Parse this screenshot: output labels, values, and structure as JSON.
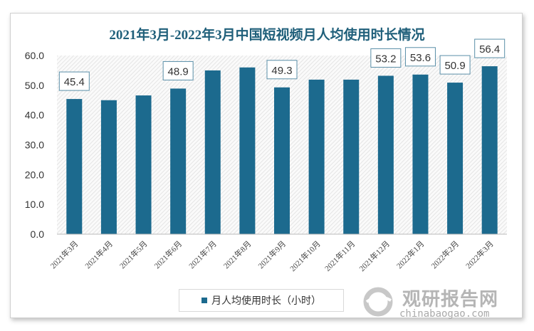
{
  "chart_data": {
    "type": "bar",
    "title": "2021年3月-2022年3月中国短视频月人均使用时长情况",
    "categories": [
      "2021年3月",
      "2021年4月",
      "2021年5月",
      "2021年6月",
      "2021年7月",
      "2021年8月",
      "2021年9月",
      "2021年10月",
      "2021年11月",
      "2021年12月",
      "2022年1月",
      "2022年2月",
      "2022年3月"
    ],
    "series": [
      {
        "name": "月人均使用时长（小时）",
        "values": [
          45.4,
          45.0,
          46.6,
          48.9,
          55.0,
          56.0,
          49.3,
          51.9,
          51.9,
          53.2,
          53.6,
          50.9,
          56.4
        ]
      }
    ],
    "data_labels": [
      "45.4",
      null,
      null,
      "48.9",
      null,
      null,
      "49.3",
      null,
      null,
      "53.2",
      "53.6",
      "50.9",
      "56.4"
    ],
    "yticks": [
      "0.0",
      "10.0",
      "20.0",
      "30.0",
      "40.0",
      "50.0",
      "60.0"
    ],
    "ylim": [
      0,
      60
    ],
    "xlabel": "",
    "ylabel": "",
    "legend_position": "bottom",
    "bar_color": "#1c6a8e"
  },
  "watermark": {
    "cn": "观研报告网",
    "en": "chinabaogao.com"
  }
}
